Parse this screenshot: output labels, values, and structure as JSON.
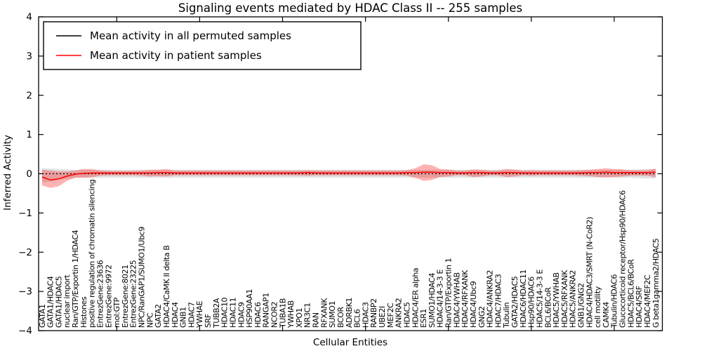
{
  "chart_data": {
    "type": "line",
    "title": "Signaling events mediated by HDAC Class II -- 255 samples",
    "xlabel": "Cellular Entities",
    "ylabel": "Inferred Activity",
    "ylim": [
      -4,
      4
    ],
    "yticks": [
      -4,
      -3,
      -2,
      -1,
      0,
      1,
      2,
      3,
      4
    ],
    "ytick_labels": [
      "−4",
      "−3",
      "−2",
      "−1",
      "0",
      "1",
      "2",
      "3",
      "4"
    ],
    "grid": false,
    "legend_position": "upper left",
    "categories": [
      "GATA1",
      "GATA1/HDAC4",
      "GATA1/HDAC5",
      "nuclear import",
      "Ran/GTP/Exportin 1/HDAC4",
      "Histones",
      "positive regulation of chromatin silencing",
      "EntrezGene:23636",
      "EntrezGene:9972",
      "mol:GTP",
      "EntrezGene:8021",
      "EntrezGene:23225",
      "NPC/RanGAP1/SUMO1/Ubc9",
      "NPC",
      "GATA2",
      "HDAC4/CaMK II delta B",
      "HDAC4",
      "GNB1",
      "HDAC7",
      "YWHAE",
      "SRF",
      "TUBB2A",
      "HDAC10",
      "HDAC11",
      "HDAC9",
      "HSP90AA1",
      "HDAC6",
      "RANGAP1",
      "NCOR2",
      "TUBA1B",
      "YWHAB",
      "XPO1",
      "NR3C1",
      "RAN",
      "RFXANK",
      "SUMO1",
      "BCOR",
      "ADRBK1",
      "BCL6",
      "HDAC3",
      "RANBP2",
      "UBE2I",
      "MEF2C",
      "ANKRA2",
      "HDAC5",
      "HDAC4/ER alpha",
      "ESR1",
      "SUMO1/HDAC4",
      "HDAC4/14-3-3 E",
      "Ran/GTP/Exportin 1",
      "HDAC4/YWHAB",
      "HDAC4/RFXANK",
      "HDAC4/Ubc9",
      "GNG2",
      "HDAC4/ANKRA2",
      "HDAC7/HDAC3",
      "Tubulin",
      "GATA2/HDAC5",
      "HDAC6/HDAC11",
      "Hsp90/HDAC6",
      "HDAC5/14-3-3 E",
      "BCL6/BCoR",
      "HDAC5/YWHAB",
      "HDAC5/RFXANK",
      "HDAC5/ANKRA2",
      "GNB1/GNG2",
      "HDAC4/HDAC3/SMRT (N-CoR2)",
      "cell motility",
      "CAMK4",
      "Tubulin/HDAC6",
      "Glucocorticoid receptor/Hsp90/HDAC6",
      "HDAC5/BCL6/BCoR",
      "HDAC4/SRF",
      "HDAC4/MEF2C",
      "G beta1gamma2/HDAC5"
    ],
    "series": [
      {
        "name": "Mean activity in all permuted samples",
        "color": "#000000",
        "line_style": "dotted",
        "constant_value": 0.0,
        "band": {
          "fill": "rgba(0,0,0,0.12)",
          "upper": [
            0.14,
            0.13,
            0.12,
            0.11,
            0.1,
            0.1,
            0.1,
            0.1,
            0.1,
            0.1,
            0.1,
            0.1,
            0.1,
            0.1,
            0.1,
            0.1,
            0.1,
            0.1,
            0.1,
            0.1,
            0.1,
            0.1,
            0.1,
            0.1,
            0.1,
            0.1,
            0.1,
            0.1,
            0.1,
            0.1,
            0.1,
            0.1,
            0.1,
            0.1,
            0.1,
            0.1,
            0.1,
            0.1,
            0.1,
            0.1,
            0.1,
            0.1,
            0.1,
            0.1,
            0.1,
            0.1,
            0.1,
            0.1,
            0.1,
            0.1,
            0.1,
            0.1,
            0.1,
            0.1,
            0.1,
            0.1,
            0.1,
            0.1,
            0.1,
            0.1,
            0.1,
            0.1,
            0.1,
            0.1,
            0.1,
            0.1,
            0.1,
            0.1,
            0.1,
            0.1,
            0.1,
            0.1,
            0.11,
            0.12,
            0.12
          ],
          "lower": [
            -0.22,
            -0.2,
            -0.16,
            -0.13,
            -0.1,
            -0.1,
            -0.1,
            -0.1,
            -0.1,
            -0.1,
            -0.1,
            -0.1,
            -0.1,
            -0.1,
            -0.1,
            -0.1,
            -0.1,
            -0.1,
            -0.1,
            -0.1,
            -0.1,
            -0.1,
            -0.1,
            -0.1,
            -0.1,
            -0.1,
            -0.1,
            -0.1,
            -0.1,
            -0.1,
            -0.1,
            -0.1,
            -0.1,
            -0.1,
            -0.1,
            -0.1,
            -0.1,
            -0.1,
            -0.1,
            -0.1,
            -0.1,
            -0.1,
            -0.1,
            -0.1,
            -0.1,
            -0.1,
            -0.1,
            -0.1,
            -0.1,
            -0.1,
            -0.1,
            -0.1,
            -0.1,
            -0.1,
            -0.1,
            -0.1,
            -0.1,
            -0.1,
            -0.1,
            -0.1,
            -0.1,
            -0.1,
            -0.1,
            -0.1,
            -0.1,
            -0.1,
            -0.1,
            -0.1,
            -0.1,
            -0.1,
            -0.1,
            -0.1,
            -0.11,
            -0.12,
            -0.12
          ]
        }
      },
      {
        "name": "Mean activity in patient samples",
        "color": "#ff0000",
        "line_style": "solid",
        "values": [
          -0.08,
          -0.16,
          -0.13,
          -0.06,
          -0.01,
          0.01,
          0.02,
          0.02,
          0.02,
          0.02,
          0.02,
          0.02,
          0.02,
          0.02,
          0.03,
          0.03,
          0.02,
          0.02,
          0.02,
          0.02,
          0.02,
          0.02,
          0.02,
          0.02,
          0.02,
          0.02,
          0.02,
          0.02,
          0.02,
          0.02,
          0.02,
          0.02,
          0.03,
          0.02,
          0.02,
          0.02,
          0.02,
          0.02,
          0.02,
          0.02,
          0.02,
          0.02,
          0.02,
          0.02,
          0.03,
          0.03,
          0.04,
          0.04,
          0.03,
          0.03,
          0.02,
          0.02,
          0.03,
          0.03,
          0.02,
          0.02,
          0.03,
          0.03,
          0.02,
          0.02,
          0.02,
          0.02,
          0.02,
          0.02,
          0.02,
          0.02,
          0.03,
          0.03,
          0.04,
          0.03,
          0.03,
          0.03,
          0.03,
          0.03,
          0.04
        ],
        "band": {
          "fill": "rgba(255,0,0,0.30)",
          "upper": [
            0.1,
            0.08,
            0.06,
            0.06,
            0.08,
            0.12,
            0.12,
            0.08,
            0.07,
            0.07,
            0.07,
            0.07,
            0.08,
            0.1,
            0.1,
            0.12,
            0.08,
            0.08,
            0.08,
            0.08,
            0.08,
            0.08,
            0.08,
            0.08,
            0.08,
            0.08,
            0.08,
            0.08,
            0.08,
            0.08,
            0.08,
            0.08,
            0.09,
            0.08,
            0.08,
            0.08,
            0.08,
            0.08,
            0.08,
            0.08,
            0.08,
            0.08,
            0.08,
            0.08,
            0.09,
            0.14,
            0.24,
            0.22,
            0.12,
            0.11,
            0.08,
            0.08,
            0.11,
            0.1,
            0.08,
            0.08,
            0.12,
            0.11,
            0.08,
            0.09,
            0.08,
            0.08,
            0.08,
            0.08,
            0.08,
            0.09,
            0.1,
            0.12,
            0.14,
            0.12,
            0.11,
            0.09,
            0.09,
            0.09,
            0.13
          ],
          "lower": [
            -0.3,
            -0.36,
            -0.32,
            -0.18,
            -0.1,
            -0.1,
            -0.09,
            -0.05,
            -0.04,
            -0.04,
            -0.04,
            -0.04,
            -0.05,
            -0.07,
            -0.06,
            -0.07,
            -0.04,
            -0.04,
            -0.04,
            -0.04,
            -0.04,
            -0.04,
            -0.04,
            -0.04,
            -0.04,
            -0.04,
            -0.04,
            -0.04,
            -0.04,
            -0.04,
            -0.04,
            -0.04,
            -0.05,
            -0.04,
            -0.04,
            -0.04,
            -0.04,
            -0.04,
            -0.04,
            -0.04,
            -0.04,
            -0.04,
            -0.04,
            -0.04,
            -0.05,
            -0.1,
            -0.18,
            -0.16,
            -0.08,
            -0.07,
            -0.04,
            -0.04,
            -0.08,
            -0.07,
            -0.04,
            -0.04,
            -0.08,
            -0.07,
            -0.04,
            -0.05,
            -0.04,
            -0.04,
            -0.04,
            -0.04,
            -0.04,
            -0.05,
            -0.06,
            -0.08,
            -0.09,
            -0.08,
            -0.07,
            -0.05,
            -0.05,
            -0.05,
            -0.09
          ]
        }
      }
    ],
    "colors": {
      "frame": "#000000",
      "patient_line": "#ff0000",
      "permuted_line": "#000000",
      "patient_band": "rgba(255,0,0,0.30)",
      "permuted_band": "rgba(0,0,0,0.12)"
    }
  }
}
